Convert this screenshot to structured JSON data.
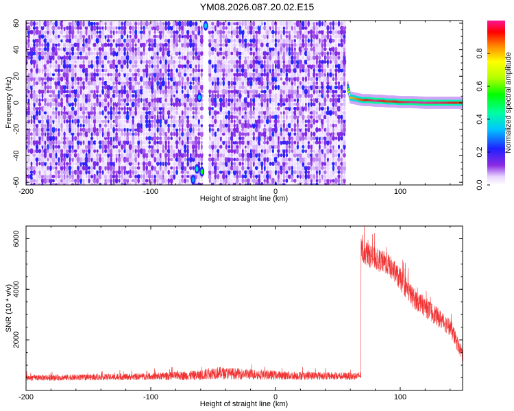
{
  "title": "YM08.2026.087.20.02.E15",
  "chart_data": [
    {
      "type": "heatmap",
      "xlabel": "Height of straight line (km)",
      "ylabel": "Frequency (Hz)",
      "xlim": [
        -200,
        150
      ],
      "ylim": [
        -62,
        62
      ],
      "xticks": [
        -200,
        -100,
        0,
        100
      ],
      "yticks": [
        -60,
        -40,
        -20,
        0,
        20,
        40,
        60
      ],
      "noise_region": {
        "x_range": [
          -200,
          57
        ],
        "amplitude_range": [
          0.0,
          0.25
        ]
      },
      "empty_region": {
        "x_range": [
          57,
          150
        ]
      },
      "gap_column": {
        "x": -57,
        "amplitude": 0.0
      },
      "hot_spots": [
        {
          "x": -56,
          "y": 58,
          "amplitude": 0.35
        },
        {
          "x": -61,
          "y": 4,
          "amplitude": 0.35
        },
        {
          "x": -63,
          "y": -50,
          "amplitude": 0.4
        },
        {
          "x": -59,
          "y": -52,
          "amplitude": 0.55
        },
        {
          "x": -66,
          "y": -58,
          "amplitude": 0.3
        }
      ],
      "ridge": {
        "x": [
          58,
          60,
          65,
          70,
          75,
          80,
          85,
          90,
          95,
          100,
          110,
          120,
          130,
          140,
          150
        ],
        "y": [
          12,
          4,
          3,
          2,
          2,
          1.5,
          1.5,
          1,
          1,
          0.5,
          0.5,
          0,
          0,
          0,
          0
        ],
        "amplitude": [
          0.55,
          0.8,
          0.85,
          0.9,
          0.95,
          1.0,
          0.95,
          0.9,
          0.92,
          0.95,
          1.0,
          1.0,
          0.98,
          0.95,
          0.9
        ]
      },
      "colorbar": {
        "label": "Normalized spectral amplitude",
        "range": [
          0.0,
          1.0
        ],
        "ticks": [
          "0.0",
          "0.2",
          "0.4",
          "0.6",
          "0.8"
        ]
      }
    },
    {
      "type": "line",
      "xlabel": "Height of straight line (km)",
      "ylabel": "SNR (10 * v/v)",
      "xlim": [
        -200,
        150
      ],
      "ylim": [
        0,
        6500
      ],
      "xticks": [
        -200,
        -100,
        0,
        100
      ],
      "yticks": [
        2000,
        4000,
        6000
      ],
      "color": "#f03232",
      "series": [
        {
          "x": [
            -200,
            -150,
            -100,
            -60,
            -50,
            0,
            30,
            65,
            68,
            70,
            80,
            90,
            100,
            110,
            120,
            130,
            140,
            150
          ],
          "y": [
            500,
            520,
            550,
            600,
            700,
            600,
            580,
            560,
            600,
            5500,
            5200,
            5000,
            4400,
            3700,
            3300,
            2900,
            2500,
            1400
          ],
          "noise": [
            120,
            120,
            140,
            200,
            250,
            180,
            160,
            150,
            150,
            500,
            450,
            450,
            450,
            420,
            400,
            380,
            350,
            300
          ]
        }
      ]
    }
  ]
}
